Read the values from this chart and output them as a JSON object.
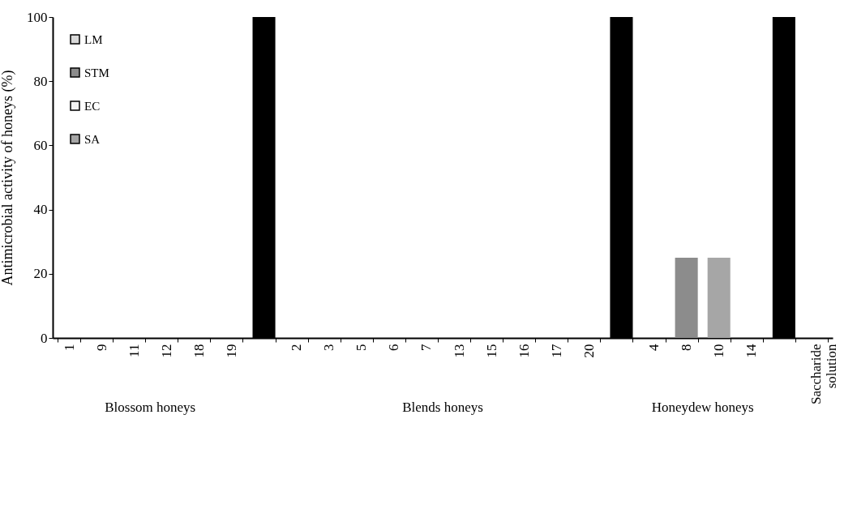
{
  "chart_data": {
    "type": "bar",
    "ylabel": "Antimicrobial activity of honeys (%)",
    "categories": [
      "1",
      "9",
      "11",
      "12",
      "18",
      "19",
      null,
      "2",
      "3",
      "5",
      "6",
      "7",
      "13",
      "15",
      "16",
      "17",
      "20",
      null,
      "4",
      "8",
      "10",
      "14",
      null,
      "Saccharide solution"
    ],
    "series": [
      {
        "color": "#000000",
        "values": [
          null,
          null,
          null,
          null,
          null,
          null,
          100,
          null,
          null,
          null,
          null,
          null,
          null,
          null,
          null,
          null,
          null,
          100,
          null,
          null,
          null,
          null,
          100,
          null
        ]
      },
      {
        "name": "LM",
        "color": "#d9d9d9",
        "values": [
          0,
          0,
          0,
          0,
          0,
          0,
          null,
          0,
          0,
          0,
          0,
          0,
          0,
          0,
          0,
          0,
          0,
          null,
          0,
          0,
          0,
          0,
          null,
          0
        ]
      },
      {
        "name": "STM",
        "color": "#8c8c8c",
        "values": [
          0,
          0,
          0,
          0,
          0,
          0,
          null,
          0,
          0,
          0,
          0,
          0,
          0,
          0,
          0,
          0,
          0,
          null,
          0,
          25,
          0,
          0,
          null,
          0
        ]
      },
      {
        "name": "EC",
        "color": "#f2f2f2",
        "values": [
          0,
          0,
          0,
          0,
          0,
          0,
          null,
          0,
          0,
          0,
          0,
          0,
          0,
          0,
          0,
          0,
          0,
          null,
          0,
          0,
          0,
          0,
          null,
          0
        ]
      },
      {
        "name": "SA",
        "color": "#a6a6a6",
        "values": [
          0,
          0,
          0,
          0,
          0,
          0,
          null,
          0,
          0,
          0,
          0,
          0,
          0,
          0,
          0,
          0,
          0,
          null,
          0,
          0,
          25,
          0,
          null,
          0
        ]
      }
    ],
    "ylim": [
      0,
      100
    ],
    "yticks": [
      0,
      20,
      40,
      60,
      80,
      100
    ],
    "grid": false,
    "legend": "top left",
    "annotations": [
      "Blossom honeys",
      "Blends honeys",
      "Honeydew honeys"
    ]
  }
}
